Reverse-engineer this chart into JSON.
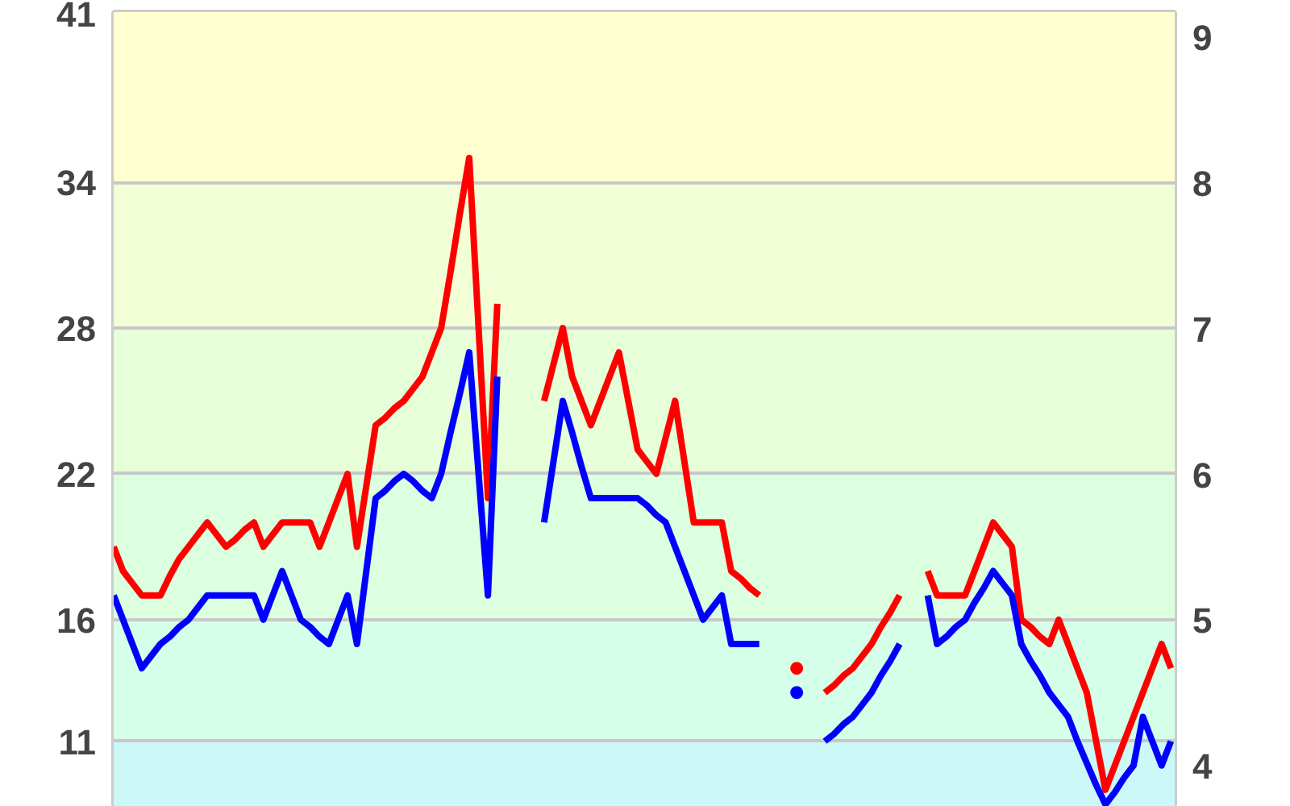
{
  "chart_data": {
    "type": "line",
    "categories": [
      null,
      null,
      null,
      null,
      null,
      null,
      null,
      null,
      null,
      null,
      null,
      null,
      null,
      null,
      null,
      null,
      null,
      null,
      null,
      null,
      null,
      null,
      null,
      null,
      null,
      null,
      null,
      null,
      null,
      null,
      null,
      null,
      null,
      null,
      null,
      null,
      null,
      null,
      null,
      null,
      null,
      null,
      null,
      null,
      null,
      null,
      null,
      null,
      null,
      null,
      null,
      null,
      null,
      null,
      null,
      null,
      null,
      null,
      null,
      null,
      null,
      null,
      null,
      null,
      null,
      null,
      null,
      null,
      null,
      null,
      null,
      null,
      null,
      null,
      null,
      null,
      null,
      null,
      null,
      null,
      null,
      null,
      null,
      null,
      null,
      null,
      null,
      null,
      null,
      null,
      null,
      null,
      null,
      null,
      null,
      null,
      null,
      null,
      null,
      null,
      null,
      null,
      null,
      null,
      null,
      null,
      null,
      null,
      null,
      null,
      null,
      null,
      null,
      null
    ],
    "ylim": [
      8.3,
      41
    ],
    "yticks": [
      11,
      16,
      22,
      28,
      34,
      41
    ],
    "y2lim": [
      3.72,
      9.17
    ],
    "y2ticks": [
      4,
      5,
      6,
      7,
      8,
      9
    ],
    "grid": "y",
    "marker": "none",
    "line_style": "solid",
    "bands": [
      {
        "axis": "y",
        "from": 34,
        "to": 41,
        "color": "#ffffd0"
      },
      {
        "axis": "y",
        "from": 28,
        "to": 34,
        "color": "#f2ffd6"
      },
      {
        "axis": "y",
        "from": 22,
        "to": 28,
        "color": "#e6ffd8"
      },
      {
        "axis": "y",
        "from": 16,
        "to": 22,
        "color": "#dcffdf"
      },
      {
        "axis": "y",
        "from": 11,
        "to": 16,
        "color": "#d6ffe9"
      },
      {
        "axis": "y",
        "from": 8.3,
        "to": 11,
        "color": "#ccf8f8"
      }
    ],
    "series": [
      {
        "color": "#ff0000",
        "values": [
          19,
          18,
          17.5,
          17,
          17,
          17,
          17.8,
          18.5,
          19,
          19.5,
          20,
          19.5,
          19,
          19.3,
          19.7,
          20,
          19,
          19.5,
          20,
          20,
          20,
          20,
          19,
          20,
          21,
          22,
          19,
          21.5,
          24,
          24.3,
          24.7,
          25,
          25.5,
          26,
          27,
          28,
          30.3,
          32.7,
          35,
          28,
          21,
          29,
          null,
          null,
          null,
          null,
          25,
          26.5,
          28,
          26,
          25,
          24,
          25,
          26,
          27,
          25,
          23,
          22.5,
          22,
          23.5,
          25,
          22.5,
          20,
          20,
          20,
          20,
          18,
          17.7,
          17.3,
          17,
          null,
          null,
          null,
          14,
          null,
          null,
          13,
          13.3,
          13.7,
          14,
          14.5,
          15,
          15.7,
          16.3,
          17,
          null,
          null,
          18,
          17,
          17,
          17,
          17,
          18,
          19,
          20,
          19.5,
          19,
          16,
          15.7,
          15.3,
          15,
          16,
          15,
          14,
          13,
          11,
          9,
          10,
          11,
          12,
          13,
          14,
          15,
          14
        ]
      },
      {
        "color": "#0000ff",
        "values": [
          17,
          16,
          15,
          14,
          14.5,
          15,
          15.3,
          15.7,
          16,
          16.5,
          17,
          17,
          17,
          17,
          17,
          17,
          16,
          17,
          18,
          17,
          16,
          15.7,
          15.3,
          15,
          16,
          17,
          15,
          18,
          21,
          21.3,
          21.7,
          22,
          21.7,
          21.3,
          21,
          22,
          23.7,
          25.3,
          27,
          22,
          17,
          26,
          null,
          null,
          null,
          null,
          20,
          22.5,
          25,
          23.7,
          22.3,
          21,
          21,
          21,
          21,
          21,
          21,
          20.7,
          20.3,
          20,
          19,
          18,
          17,
          16,
          16.5,
          17,
          15,
          15,
          15,
          15,
          null,
          null,
          null,
          13,
          null,
          null,
          11,
          11.3,
          11.7,
          12,
          12.5,
          13,
          13.7,
          14.3,
          15,
          null,
          null,
          17,
          15,
          15.3,
          15.7,
          16,
          16.7,
          17.3,
          18,
          17.5,
          17,
          15,
          14.3,
          13.7,
          13,
          12.5,
          12,
          11,
          10.1,
          9.2,
          8.4,
          8.9,
          9.5,
          10,
          12,
          11,
          10,
          11
        ]
      }
    ]
  }
}
